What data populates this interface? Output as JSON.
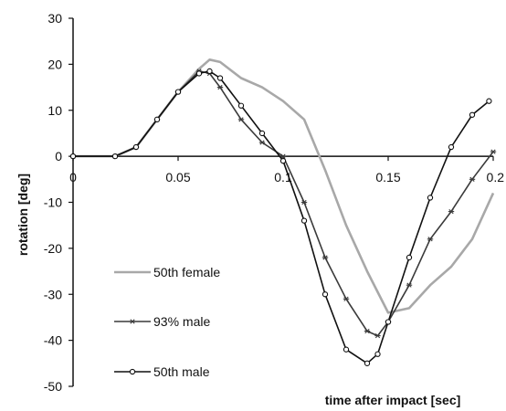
{
  "chart_data": {
    "type": "line",
    "title": "",
    "xlabel": "time after impact [sec]",
    "ylabel": "rotation [deg]",
    "xlim": [
      0,
      0.2
    ],
    "ylim": [
      -50,
      30
    ],
    "x_ticks": [
      "0",
      "0.05",
      "0.1",
      "0.15",
      "0.2"
    ],
    "y_ticks": [
      "30",
      "20",
      "10",
      "0",
      "-10",
      "-20",
      "-30",
      "-40",
      "-50"
    ],
    "grid": false,
    "legend_position": "lower-left",
    "series": [
      {
        "name": "50th female",
        "color": "#a8a8a8",
        "marker": "none",
        "x": [
          0,
          0.02,
          0.03,
          0.04,
          0.05,
          0.06,
          0.065,
          0.07,
          0.08,
          0.09,
          0.1,
          0.11,
          0.12,
          0.13,
          0.14,
          0.15,
          0.16,
          0.17,
          0.18,
          0.19,
          0.2
        ],
        "y": [
          0,
          0,
          2,
          8,
          14,
          19,
          21,
          20.5,
          17,
          15,
          12,
          8,
          -3,
          -15,
          -25,
          -34,
          -33,
          -28,
          -24,
          -18,
          -8
        ]
      },
      {
        "name": "93% male",
        "color": "#3a3a3a",
        "marker": "star",
        "x": [
          0,
          0.02,
          0.03,
          0.04,
          0.05,
          0.06,
          0.065,
          0.07,
          0.08,
          0.09,
          0.1,
          0.11,
          0.12,
          0.13,
          0.14,
          0.145,
          0.15,
          0.16,
          0.17,
          0.18,
          0.19,
          0.2
        ],
        "y": [
          0,
          0,
          2,
          8,
          14,
          18.5,
          18,
          15,
          8,
          3,
          0,
          -10,
          -22,
          -31,
          -38,
          -39,
          -36,
          -28,
          -18,
          -12,
          -5,
          1
        ]
      },
      {
        "name": "50th male",
        "color": "#111111",
        "marker": "circle",
        "x": [
          0,
          0.02,
          0.03,
          0.04,
          0.05,
          0.06,
          0.065,
          0.07,
          0.08,
          0.09,
          0.1,
          0.11,
          0.12,
          0.13,
          0.14,
          0.145,
          0.15,
          0.16,
          0.17,
          0.18,
          0.19,
          0.198
        ],
        "y": [
          0,
          0,
          2,
          8,
          14,
          18,
          18.5,
          17,
          11,
          5,
          -1,
          -14,
          -30,
          -42,
          -45,
          -43,
          -36,
          -22,
          -9,
          2,
          9,
          12
        ]
      }
    ]
  }
}
